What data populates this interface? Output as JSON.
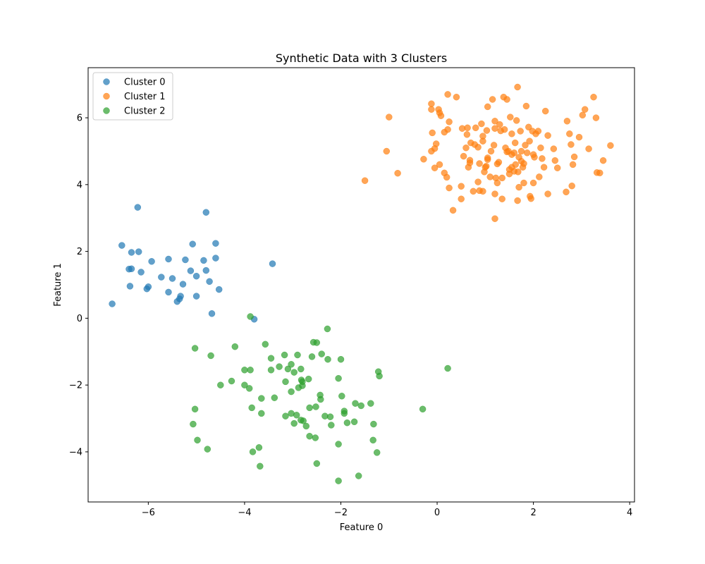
{
  "chart_data": {
    "type": "scatter",
    "title": "Synthetic Data with 3 Clusters",
    "xlabel": "Feature 0",
    "ylabel": "Feature 1",
    "xlim": [
      -7.25,
      4.1
    ],
    "ylim": [
      -5.5,
      7.5
    ],
    "xticks": [
      -6,
      -4,
      -2,
      0,
      2,
      4
    ],
    "yticks": [
      -4,
      -2,
      0,
      2,
      4,
      6
    ],
    "xtick_labels": [
      "−6",
      "−4",
      "−2",
      "0",
      "2",
      "4"
    ],
    "ytick_labels": [
      "−4",
      "−2",
      "0",
      "2",
      "4",
      "6"
    ],
    "legend_position": "top-left",
    "grid": false,
    "series": [
      {
        "name": "Cluster 0",
        "color": "#1f77b4",
        "points": [
          [
            -6.75,
            0.43
          ],
          [
            -6.55,
            2.18
          ],
          [
            -6.4,
            1.47
          ],
          [
            -6.35,
            1.48
          ],
          [
            -6.35,
            1.97
          ],
          [
            -6.38,
            0.96
          ],
          [
            -6.22,
            3.32
          ],
          [
            -6.2,
            1.99
          ],
          [
            -6.15,
            1.38
          ],
          [
            -6.03,
            0.88
          ],
          [
            -6.0,
            0.94
          ],
          [
            -5.93,
            1.7
          ],
          [
            -5.73,
            1.23
          ],
          [
            -5.58,
            0.78
          ],
          [
            -5.58,
            1.77
          ],
          [
            -5.5,
            1.19
          ],
          [
            -5.4,
            0.5
          ],
          [
            -5.35,
            0.58
          ],
          [
            -5.33,
            0.66
          ],
          [
            -5.28,
            1.02
          ],
          [
            -5.23,
            1.75
          ],
          [
            -5.12,
            1.42
          ],
          [
            -5.08,
            2.22
          ],
          [
            -5.0,
            0.66
          ],
          [
            -5.0,
            1.26
          ],
          [
            -4.85,
            1.73
          ],
          [
            -4.8,
            1.43
          ],
          [
            -4.8,
            3.17
          ],
          [
            -4.73,
            1.1
          ],
          [
            -4.68,
            0.14
          ],
          [
            -4.6,
            2.24
          ],
          [
            -4.6,
            1.8
          ],
          [
            -4.53,
            0.86
          ],
          [
            -3.8,
            -0.03
          ],
          [
            -3.42,
            1.63
          ]
        ]
      },
      {
        "name": "Cluster 1",
        "color": "#ff7f0e",
        "points": [
          [
            -1.5,
            4.12
          ],
          [
            -1.05,
            5.0
          ],
          [
            -1.0,
            6.02
          ],
          [
            -0.82,
            4.34
          ],
          [
            -0.28,
            4.76
          ],
          [
            -0.12,
            6.42
          ],
          [
            -0.12,
            6.25
          ],
          [
            -0.12,
            5.0
          ],
          [
            -0.1,
            5.55
          ],
          [
            -0.05,
            5.08
          ],
          [
            -0.02,
            5.22
          ],
          [
            -0.05,
            4.5
          ],
          [
            0.03,
            6.25
          ],
          [
            0.05,
            6.15
          ],
          [
            0.08,
            6.06
          ],
          [
            0.05,
            4.6
          ],
          [
            0.15,
            4.35
          ],
          [
            0.15,
            5.57
          ],
          [
            0.2,
            4.22
          ],
          [
            0.22,
            6.7
          ],
          [
            0.22,
            5.65
          ],
          [
            0.25,
            3.9
          ],
          [
            0.25,
            5.88
          ],
          [
            0.33,
            3.23
          ],
          [
            0.4,
            6.62
          ],
          [
            0.5,
            3.57
          ],
          [
            0.5,
            3.95
          ],
          [
            0.52,
            5.68
          ],
          [
            0.55,
            4.85
          ],
          [
            0.62,
            5.5
          ],
          [
            0.63,
            5.7
          ],
          [
            0.65,
            4.52
          ],
          [
            0.68,
            4.65
          ],
          [
            0.68,
            4.73
          ],
          [
            0.7,
            5.25
          ],
          [
            0.75,
            3.8
          ],
          [
            0.78,
            5.2
          ],
          [
            0.85,
            5.12
          ],
          [
            0.85,
            4.08
          ],
          [
            0.88,
            3.82
          ],
          [
            0.88,
            4.63
          ],
          [
            0.92,
            5.82
          ],
          [
            0.95,
            5.45
          ],
          [
            0.98,
            4.38
          ],
          [
            1.0,
            4.52
          ],
          [
            1.02,
            4.55
          ],
          [
            1.03,
            5.62
          ],
          [
            1.05,
            6.33
          ],
          [
            1.05,
            4.75
          ],
          [
            1.1,
            4.23
          ],
          [
            1.12,
            5.0
          ],
          [
            1.15,
            6.55
          ],
          [
            1.18,
            5.18
          ],
          [
            1.2,
            5.68
          ],
          [
            1.2,
            5.9
          ],
          [
            1.2,
            3.72
          ],
          [
            1.2,
            2.98
          ],
          [
            1.22,
            4.2
          ],
          [
            1.25,
            4.62
          ],
          [
            1.25,
            4.05
          ],
          [
            1.28,
            4.67
          ],
          [
            1.32,
            5.61
          ],
          [
            1.35,
            3.57
          ],
          [
            1.35,
            4.2
          ],
          [
            1.38,
            6.62
          ],
          [
            1.4,
            5.65
          ],
          [
            1.42,
            5.1
          ],
          [
            1.45,
            6.55
          ],
          [
            1.48,
            5.0
          ],
          [
            1.5,
            4.45
          ],
          [
            1.5,
            4.32
          ],
          [
            1.52,
            6.02
          ],
          [
            1.55,
            5.52
          ],
          [
            1.55,
            4.9
          ],
          [
            1.55,
            4.52
          ],
          [
            1.6,
            4.95
          ],
          [
            1.62,
            5.25
          ],
          [
            1.63,
            4.6
          ],
          [
            1.65,
            5.92
          ],
          [
            1.67,
            6.92
          ],
          [
            1.67,
            3.52
          ],
          [
            1.68,
            4.38
          ],
          [
            1.7,
            4.82
          ],
          [
            1.7,
            3.92
          ],
          [
            1.73,
            5.6
          ],
          [
            1.75,
            5.0
          ],
          [
            1.78,
            4.52
          ],
          [
            1.8,
            4.63
          ],
          [
            1.8,
            4.05
          ],
          [
            1.83,
            5.18
          ],
          [
            1.85,
            6.35
          ],
          [
            1.87,
            4.95
          ],
          [
            1.9,
            5.72
          ],
          [
            1.92,
            5.3
          ],
          [
            1.93,
            3.65
          ],
          [
            1.95,
            3.58
          ],
          [
            1.98,
            5.6
          ],
          [
            2.0,
            4.05
          ],
          [
            2.02,
            4.82
          ],
          [
            2.05,
            5.52
          ],
          [
            2.1,
            5.6
          ],
          [
            2.12,
            4.23
          ],
          [
            2.15,
            5.1
          ],
          [
            2.18,
            4.78
          ],
          [
            2.22,
            4.52
          ],
          [
            2.25,
            6.2
          ],
          [
            2.3,
            5.47
          ],
          [
            2.3,
            3.72
          ],
          [
            2.42,
            5.07
          ],
          [
            2.45,
            4.72
          ],
          [
            2.5,
            4.5
          ],
          [
            2.68,
            3.78
          ],
          [
            2.7,
            5.9
          ],
          [
            2.75,
            5.52
          ],
          [
            2.78,
            5.2
          ],
          [
            2.8,
            3.96
          ],
          [
            2.82,
            4.6
          ],
          [
            2.85,
            4.83
          ],
          [
            2.95,
            5.42
          ],
          [
            3.02,
            6.08
          ],
          [
            3.07,
            6.25
          ],
          [
            3.15,
            5.07
          ],
          [
            3.25,
            6.62
          ],
          [
            3.3,
            6.0
          ],
          [
            3.32,
            4.36
          ],
          [
            3.38,
            4.35
          ],
          [
            3.45,
            4.72
          ],
          [
            3.6,
            5.17
          ],
          [
            0.95,
            5.3
          ],
          [
            1.05,
            4.8
          ],
          [
            0.8,
            5.7
          ],
          [
            1.45,
            4.98
          ],
          [
            1.6,
            4.4
          ],
          [
            1.75,
            4.7
          ],
          [
            2.0,
            4.9
          ],
          [
            0.6,
            5.1
          ],
          [
            1.3,
            5.8
          ],
          [
            0.95,
            3.8
          ]
        ]
      },
      {
        "name": "Cluster 2",
        "color": "#2ca02c",
        "points": [
          [
            -3.88,
            0.05
          ],
          [
            -5.03,
            -0.9
          ],
          [
            -4.7,
            -1.12
          ],
          [
            -5.03,
            -2.72
          ],
          [
            -5.07,
            -3.17
          ],
          [
            -4.98,
            -3.65
          ],
          [
            -4.77,
            -3.92
          ],
          [
            -4.5,
            -2.0
          ],
          [
            -4.27,
            -1.88
          ],
          [
            -4.2,
            -0.85
          ],
          [
            -4.0,
            -1.55
          ],
          [
            -4.0,
            -2.0
          ],
          [
            -3.88,
            -1.55
          ],
          [
            -3.9,
            -2.1
          ],
          [
            -3.85,
            -2.68
          ],
          [
            -3.83,
            -4.0
          ],
          [
            -3.7,
            -3.87
          ],
          [
            -3.68,
            -4.43
          ],
          [
            -3.65,
            -2.4
          ],
          [
            -3.65,
            -2.85
          ],
          [
            -3.57,
            -0.78
          ],
          [
            -3.45,
            -1.2
          ],
          [
            -3.45,
            -1.55
          ],
          [
            -3.38,
            -2.38
          ],
          [
            -3.28,
            -1.45
          ],
          [
            -3.17,
            -1.1
          ],
          [
            -3.15,
            -1.9
          ],
          [
            -3.15,
            -2.93
          ],
          [
            -3.1,
            -1.52
          ],
          [
            -3.03,
            -1.38
          ],
          [
            -3.03,
            -2.85
          ],
          [
            -3.03,
            -2.2
          ],
          [
            -2.97,
            -1.62
          ],
          [
            -2.97,
            -3.15
          ],
          [
            -2.92,
            -2.9
          ],
          [
            -2.9,
            -1.1
          ],
          [
            -2.88,
            -2.08
          ],
          [
            -2.83,
            -1.52
          ],
          [
            -2.83,
            -3.05
          ],
          [
            -2.82,
            -1.85
          ],
          [
            -2.8,
            -2.02
          ],
          [
            -2.8,
            -1.9
          ],
          [
            -2.78,
            -3.07
          ],
          [
            -2.72,
            -3.23
          ],
          [
            -2.67,
            -1.82
          ],
          [
            -2.65,
            -2.68
          ],
          [
            -2.65,
            -3.53
          ],
          [
            -2.6,
            -1.15
          ],
          [
            -2.57,
            -0.72
          ],
          [
            -2.53,
            -3.58
          ],
          [
            -2.52,
            -2.65
          ],
          [
            -2.5,
            -0.73
          ],
          [
            -2.5,
            -4.35
          ],
          [
            -2.43,
            -2.3
          ],
          [
            -2.4,
            -1.07
          ],
          [
            -2.42,
            -2.43
          ],
          [
            -2.33,
            -2.93
          ],
          [
            -2.28,
            -0.32
          ],
          [
            -2.27,
            -1.23
          ],
          [
            -2.22,
            -2.95
          ],
          [
            -2.2,
            -3.2
          ],
          [
            -2.05,
            -1.8
          ],
          [
            -2.05,
            -3.77
          ],
          [
            -2.05,
            -4.87
          ],
          [
            -2.0,
            -1.23
          ],
          [
            -1.98,
            -2.33
          ],
          [
            -1.93,
            -2.78
          ],
          [
            -1.93,
            -2.85
          ],
          [
            -1.87,
            -3.13
          ],
          [
            -1.72,
            -3.1
          ],
          [
            -1.7,
            -2.55
          ],
          [
            -1.63,
            -4.72
          ],
          [
            -1.58,
            -2.62
          ],
          [
            -1.38,
            -2.55
          ],
          [
            -1.33,
            -3.65
          ],
          [
            -1.32,
            -3.17
          ],
          [
            -1.25,
            -4.02
          ],
          [
            -1.22,
            -1.6
          ],
          [
            -1.2,
            -1.73
          ],
          [
            -0.3,
            -2.72
          ],
          [
            0.22,
            -1.5
          ]
        ]
      }
    ]
  }
}
